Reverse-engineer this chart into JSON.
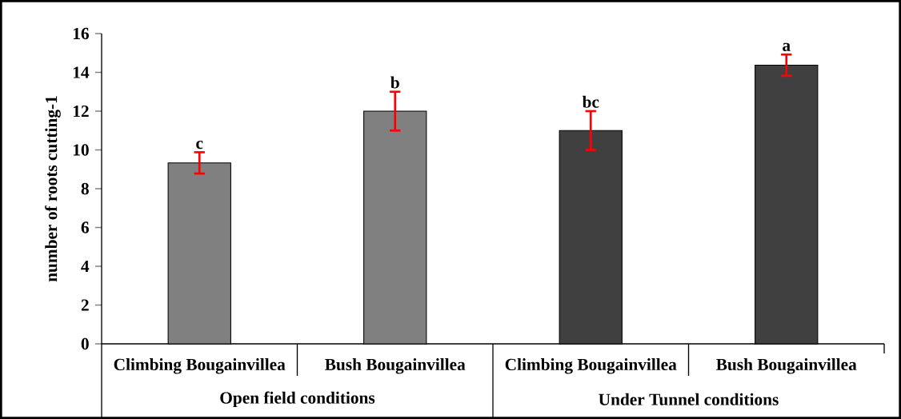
{
  "chart_data": {
    "type": "bar",
    "ylabel": "number of roots cutting-1",
    "categories": [
      "Climbing Bougainvillea",
      "Bush Bougainvillea",
      "Climbing Bougainvillea",
      "Bush Bougainvillea"
    ],
    "values": [
      9.33,
      12,
      11,
      14.37
    ],
    "errors": [
      0.55,
      1,
      1,
      0.55
    ],
    "colors": [
      "#808080",
      "#808080",
      "#404040",
      "#404040"
    ],
    "value_labels": [
      "c",
      "b",
      "bc",
      "a"
    ],
    "annotations": [
      "Open field conditions",
      "Under Tunnel conditions"
    ],
    "ylim": [
      0,
      16
    ],
    "yticks": [
      0,
      2,
      4,
      6,
      8,
      10,
      12,
      14,
      16
    ]
  }
}
